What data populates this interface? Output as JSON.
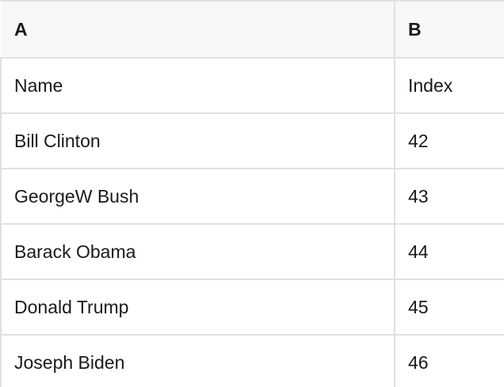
{
  "table": {
    "columns": [
      {
        "label": "A"
      },
      {
        "label": "B"
      }
    ],
    "rows": [
      [
        "Name",
        "Index"
      ],
      [
        "Bill Clinton",
        "42"
      ],
      [
        "GeorgeW Bush",
        "43"
      ],
      [
        "Barack Obama",
        "44"
      ],
      [
        "Donald Trump",
        "45"
      ],
      [
        "Joseph Biden",
        "46"
      ]
    ]
  },
  "colors": {
    "background": "#ffffff",
    "header_bg": "#f7f7f7",
    "border": "#e0e0e0",
    "text": "#1a1a1a"
  }
}
